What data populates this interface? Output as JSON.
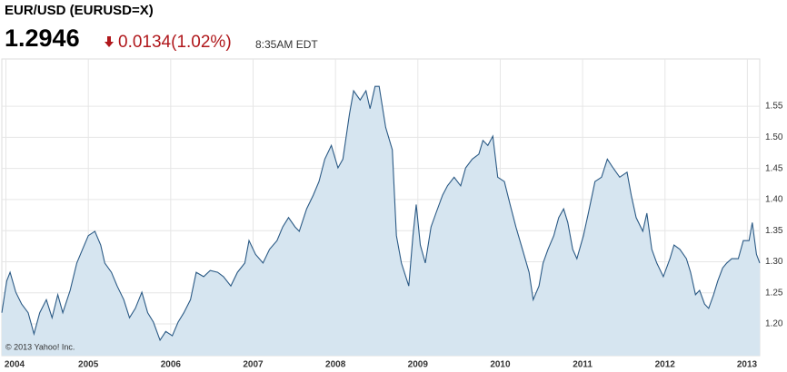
{
  "chart_data": {
    "type": "area",
    "title": "EUR/USD (EURUSD=X)",
    "price": "1.2946",
    "change": "0.0134(1.02%)",
    "time": "8:35AM EDT",
    "watermark": "© 2013 Yahoo! Inc.",
    "x": [
      2003.95,
      2004.01,
      2004.05,
      2004.12,
      2004.19,
      2004.27,
      2004.34,
      2004.41,
      2004.49,
      2004.56,
      2004.63,
      2004.69,
      2004.78,
      2004.86,
      2004.93,
      2005.0,
      2005.08,
      2005.15,
      2005.2,
      2005.28,
      2005.35,
      2005.43,
      2005.5,
      2005.57,
      2005.65,
      2005.72,
      2005.79,
      2005.87,
      2005.94,
      2006.02,
      2006.09,
      2006.16,
      2006.24,
      2006.31,
      2006.4,
      2006.48,
      2006.57,
      2006.64,
      2006.73,
      2006.81,
      2006.9,
      2006.95,
      2007.03,
      2007.12,
      2007.2,
      2007.29,
      2007.36,
      2007.43,
      2007.51,
      2007.56,
      2007.65,
      2007.73,
      2007.8,
      2007.87,
      2007.95,
      2008.03,
      2008.09,
      2008.17,
      2008.22,
      2008.3,
      2008.37,
      2008.42,
      2008.48,
      2008.53,
      2008.61,
      2008.69,
      2008.74,
      2008.8,
      2008.89,
      2008.94,
      2008.98,
      2009.03,
      2009.09,
      2009.16,
      2009.22,
      2009.3,
      2009.36,
      2009.44,
      2009.52,
      2009.58,
      2009.66,
      2009.74,
      2009.79,
      2009.85,
      2009.91,
      2009.97,
      2010.05,
      2010.12,
      2010.19,
      2010.27,
      2010.35,
      2010.4,
      2010.47,
      2010.52,
      2010.58,
      2010.65,
      2010.71,
      2010.77,
      2010.82,
      2010.88,
      2010.93,
      2011.01,
      2011.07,
      2011.15,
      2011.23,
      2011.3,
      2011.37,
      2011.45,
      2011.54,
      2011.59,
      2011.65,
      2011.73,
      2011.78,
      2011.84,
      2011.9,
      2011.98,
      2012.06,
      2012.11,
      2012.18,
      2012.26,
      2012.31,
      2012.37,
      2012.42,
      2012.48,
      2012.53,
      2012.59,
      2012.64,
      2012.7,
      2012.75,
      2012.81,
      2012.89,
      2012.95,
      2013.02,
      2013.06,
      2013.11,
      2013.15
    ],
    "series": [
      {
        "name": "EUR/USD",
        "color": "#2b5a85",
        "fill": "#d6e5f0",
        "values": [
          1.218,
          1.269,
          1.283,
          1.251,
          1.232,
          1.218,
          1.184,
          1.218,
          1.239,
          1.21,
          1.247,
          1.218,
          1.254,
          1.298,
          1.32,
          1.342,
          1.349,
          1.327,
          1.298,
          1.283,
          1.261,
          1.239,
          1.21,
          1.225,
          1.251,
          1.218,
          1.203,
          1.174,
          1.188,
          1.181,
          1.203,
          1.218,
          1.239,
          1.283,
          1.276,
          1.286,
          1.283,
          1.276,
          1.261,
          1.283,
          1.298,
          1.334,
          1.312,
          1.298,
          1.32,
          1.334,
          1.356,
          1.371,
          1.356,
          1.349,
          1.385,
          1.407,
          1.429,
          1.465,
          1.487,
          1.451,
          1.465,
          1.538,
          1.575,
          1.56,
          1.575,
          1.546,
          1.582,
          1.582,
          1.516,
          1.48,
          1.342,
          1.298,
          1.261,
          1.342,
          1.392,
          1.327,
          1.298,
          1.356,
          1.378,
          1.407,
          1.422,
          1.436,
          1.422,
          1.451,
          1.465,
          1.473,
          1.495,
          1.487,
          1.502,
          1.436,
          1.429,
          1.392,
          1.356,
          1.32,
          1.283,
          1.239,
          1.261,
          1.298,
          1.32,
          1.342,
          1.371,
          1.385,
          1.363,
          1.32,
          1.305,
          1.342,
          1.378,
          1.429,
          1.436,
          1.465,
          1.451,
          1.436,
          1.444,
          1.407,
          1.371,
          1.349,
          1.378,
          1.32,
          1.298,
          1.276,
          1.305,
          1.327,
          1.32,
          1.305,
          1.283,
          1.247,
          1.254,
          1.232,
          1.225,
          1.247,
          1.269,
          1.29,
          1.298,
          1.305,
          1.305,
          1.334,
          1.334,
          1.363,
          1.312,
          1.298
        ]
      }
    ],
    "xlim": [
      2003.95,
      2013.15
    ],
    "xticks": [
      2004,
      2005,
      2006,
      2007,
      2008,
      2009,
      2010,
      2011,
      2012,
      2013
    ],
    "ylim": [
      1.149,
      1.626
    ],
    "yticks": [
      {
        "value": 1.2,
        "label": "1.20"
      },
      1.25,
      {
        "value": 1.3,
        "label": "1.30"
      },
      1.35,
      {
        "value": 1.4,
        "label": "1.40"
      },
      1.45,
      {
        "value": 1.5,
        "label": "1.50"
      },
      1.55
    ],
    "grid": true
  }
}
